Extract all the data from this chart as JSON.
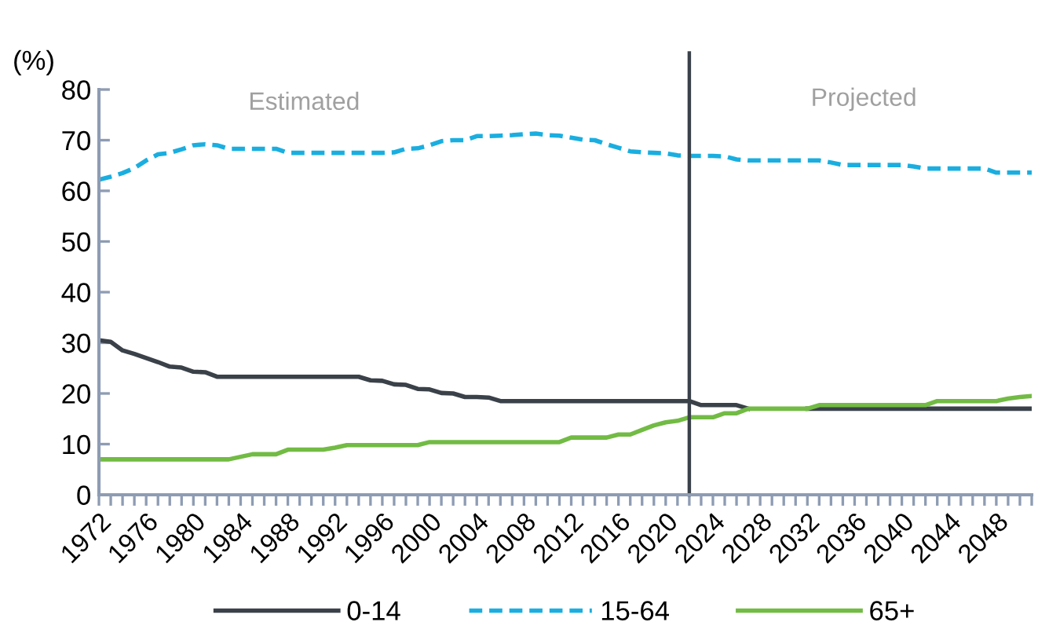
{
  "chart_data": {
    "type": "line",
    "ylabel": "(%)",
    "x": [
      1972,
      1973,
      1974,
      1975,
      1976,
      1977,
      1978,
      1979,
      1980,
      1981,
      1982,
      1983,
      1984,
      1985,
      1986,
      1987,
      1988,
      1989,
      1990,
      1991,
      1992,
      1993,
      1994,
      1995,
      1996,
      1997,
      1998,
      1999,
      2000,
      2001,
      2002,
      2003,
      2004,
      2005,
      2006,
      2007,
      2008,
      2009,
      2010,
      2011,
      2012,
      2013,
      2014,
      2015,
      2016,
      2017,
      2018,
      2019,
      2020,
      2021,
      2022,
      2023,
      2024,
      2025,
      2026,
      2027,
      2028,
      2029,
      2030,
      2031,
      2032,
      2033,
      2034,
      2035,
      2036,
      2037,
      2038,
      2039,
      2040,
      2041,
      2042,
      2043,
      2044,
      2045,
      2046,
      2047,
      2048,
      2049,
      2050,
      2051
    ],
    "series": [
      {
        "name": "0-14",
        "color": "#3a4149",
        "line_style": "solid",
        "values": [
          30.5,
          30.2,
          28.5,
          27.8,
          27,
          26.2,
          25.3,
          25.1,
          24.3,
          24.2,
          23.3,
          23.3,
          23.3,
          23.3,
          23.3,
          23.3,
          23.3,
          23.3,
          23.3,
          23.3,
          23.3,
          23.3,
          23.3,
          22.6,
          22.5,
          21.8,
          21.7,
          20.9,
          20.8,
          20.1,
          20.0,
          19.3,
          19.3,
          19.2,
          18.5,
          18.5,
          18.5,
          18.5,
          18.5,
          18.5,
          18.5,
          18.5,
          18.5,
          18.5,
          18.5,
          18.5,
          18.5,
          18.5,
          18.5,
          18.5,
          18.5,
          17.7,
          17.7,
          17.7,
          17.7,
          17.0,
          null,
          null,
          null,
          null,
          17.0,
          17.0,
          17.0,
          17.0,
          17.0,
          17.0,
          17.0,
          17.0,
          17.0,
          17.0,
          17.0,
          17.0,
          17.0,
          17.0,
          17.0,
          17.0,
          17.0,
          17.0,
          17.0,
          17.0
        ]
      },
      {
        "name": "15-64",
        "color": "#1aaee0",
        "line_style": "dashed",
        "values": [
          62.2,
          62.8,
          63.5,
          64.5,
          66,
          67.2,
          67.5,
          68.2,
          69,
          69.2,
          69,
          68.3,
          68.3,
          68.3,
          68.3,
          68.3,
          67.5,
          67.5,
          67.5,
          67.5,
          67.5,
          67.5,
          67.5,
          67.5,
          67.5,
          67.6,
          68.3,
          68.4,
          69,
          69.8,
          70,
          70,
          70.8,
          70.8,
          70.9,
          71,
          71.2,
          71.3,
          71,
          70.9,
          70.5,
          70.1,
          70,
          69.2,
          68.5,
          67.8,
          67.6,
          67.5,
          67.4,
          67,
          66.9,
          66.9,
          66.9,
          66.8,
          66.2,
          66.0,
          66.0,
          66.0,
          66.0,
          66.0,
          66.0,
          66.0,
          65.6,
          65.1,
          65.1,
          65.1,
          65.1,
          65.1,
          65.1,
          64.8,
          64.4,
          64.4,
          64.4,
          64.4,
          64.4,
          64.4,
          63.6,
          63.6,
          63.6,
          63.6
        ]
      },
      {
        "name": "65+",
        "color": "#72bb44",
        "line_style": "solid",
        "values": [
          7.0,
          7.0,
          7.0,
          7.0,
          7.0,
          7.0,
          7.0,
          7.0,
          7.0,
          7.0,
          7.0,
          7.0,
          7.5,
          8.0,
          8.0,
          8.0,
          8.9,
          8.9,
          8.9,
          8.9,
          9.3,
          9.8,
          9.8,
          9.8,
          9.8,
          9.8,
          9.8,
          9.8,
          10.4,
          10.4,
          10.4,
          10.4,
          10.4,
          10.4,
          10.4,
          10.4,
          10.4,
          10.4,
          10.4,
          10.4,
          11.3,
          11.3,
          11.3,
          11.3,
          11.9,
          11.9,
          12.8,
          13.7,
          14.3,
          14.6,
          15.3,
          15.3,
          15.3,
          16.1,
          16.1,
          17.0,
          17.0,
          17.0,
          17.0,
          17.0,
          17.0,
          17.7,
          17.7,
          17.7,
          17.7,
          17.7,
          17.7,
          17.7,
          17.7,
          17.7,
          17.7,
          18.5,
          18.5,
          18.5,
          18.5,
          18.5,
          18.5,
          19.0,
          19.3,
          19.5
        ]
      }
    ],
    "xlim": [
      1972,
      2051
    ],
    "xticks": [
      1972,
      1976,
      1980,
      1984,
      1988,
      1992,
      1996,
      2000,
      2004,
      2008,
      2012,
      2016,
      2020,
      2024,
      2028,
      2032,
      2036,
      2040,
      2044,
      2048
    ],
    "ylim": [
      0,
      80
    ],
    "yticks": [
      0,
      10,
      20,
      30,
      40,
      50,
      60,
      70,
      80
    ],
    "ref_lines": [
      {
        "axis": "x",
        "value": 2022,
        "color": "#3a4149"
      }
    ],
    "annotations": [
      "Estimated",
      "Projected"
    ],
    "grid": false,
    "legend": "bottom",
    "marker": "none"
  }
}
